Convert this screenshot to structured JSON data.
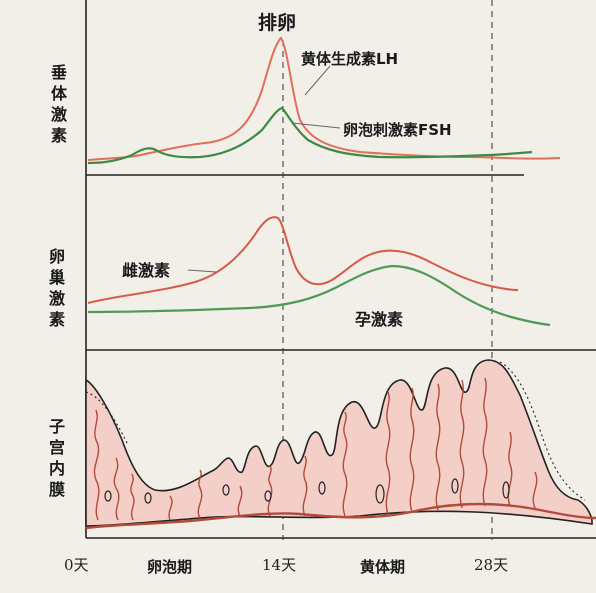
{
  "panels": {
    "pituitary": {
      "label": "垂体激素"
    },
    "ovarian": {
      "label": "卵巢激素"
    },
    "endometrium": {
      "label": "子宫内膜"
    }
  },
  "annotations": {
    "ovulation": "排卵",
    "lh": "黄体生成素LH",
    "fsh": "卵泡刺激素FSH",
    "estrogen": "雌激素",
    "progesterone": "孕激素"
  },
  "axis": {
    "ticks": [
      "0天",
      "14天",
      "28天"
    ],
    "phases": [
      "卵泡期",
      "黄体期"
    ]
  },
  "colors": {
    "lh": "#e0705e",
    "fsh": "#3d8a45",
    "estrogen": "#d65a48",
    "progesterone": "#4f9a55",
    "tissue": "#f3cfc8",
    "vessel": "#b34a3a",
    "border": "#222222"
  }
}
